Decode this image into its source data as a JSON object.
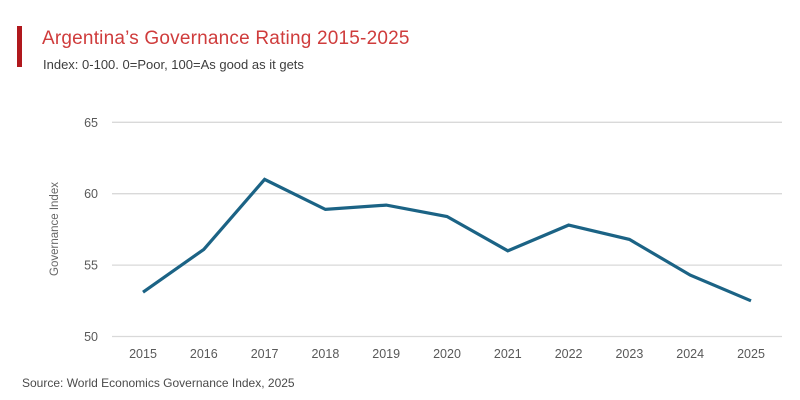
{
  "header": {
    "title": "Argentina’s Governance Rating 2015-2025",
    "subtitle": "Index: 0-100. 0=Poor, 100=As good as it gets",
    "accent_color": "#b0181d",
    "title_color": "#cf3c3c"
  },
  "chart_data": {
    "type": "line",
    "title": "Argentina’s Governance Rating 2015-2025",
    "subtitle": "Index: 0-100. 0=Poor, 100=As good as it gets",
    "xlabel": "",
    "ylabel": "Governance Index",
    "categories": [
      "2015",
      "2016",
      "2017",
      "2018",
      "2019",
      "2020",
      "2021",
      "2022",
      "2023",
      "2024",
      "2025"
    ],
    "values": [
      53.1,
      56.1,
      61.0,
      58.9,
      59.2,
      58.4,
      56.0,
      57.8,
      56.8,
      54.3,
      52.5
    ],
    "ylim": [
      50,
      65
    ],
    "yticks": [
      50,
      55,
      60,
      65
    ],
    "grid": "horizontal",
    "legend": "none",
    "line_color": "#1b6385",
    "gridline_color": "#d9d9d9",
    "tick_label_color": "#595959",
    "axis_title_color": "#666666"
  },
  "footer": {
    "source": "Source: World Economics Governance Index, 2025"
  }
}
